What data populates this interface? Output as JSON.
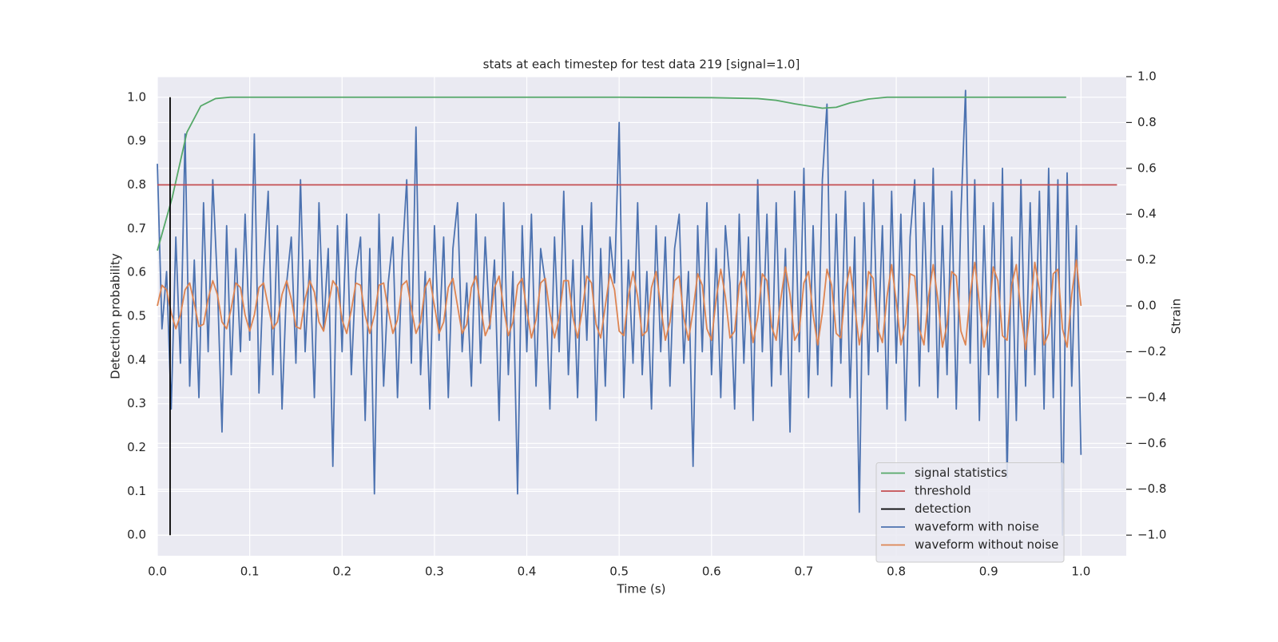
{
  "chart_data": {
    "type": "line",
    "title": "stats at each timestep for test data 219 [signal=1.0]",
    "xlabel": "Time (s)",
    "ylabel": "Detection probability",
    "y2label": "Strain",
    "xlim": [
      0,
      1.049
    ],
    "ylim": [
      -0.047,
      1.047
    ],
    "y2lim": [
      -1.09,
      1.0
    ],
    "xticks": [
      {
        "value": 0,
        "label": "0.0"
      },
      0.1,
      0.2,
      0.3,
      0.4,
      0.5,
      0.6,
      0.7,
      0.8,
      0.9,
      {
        "value": 1,
        "label": "1.0"
      }
    ],
    "yticks": [
      {
        "value": 0,
        "label": "0.0"
      },
      0.1,
      0.2,
      0.3,
      0.4,
      0.5,
      0.6,
      0.7,
      0.8,
      0.9,
      {
        "value": 1,
        "label": "1.0"
      }
    ],
    "y2ticks": [
      {
        "value": -1,
        "label": "−1.0"
      },
      {
        "value": -0.8,
        "label": "−0.8"
      },
      {
        "value": -0.6,
        "label": "−0.6"
      },
      {
        "value": -0.4,
        "label": "−0.4"
      },
      {
        "value": -0.2,
        "label": "−0.2"
      },
      {
        "value": 0,
        "label": "0.0"
      },
      0.2,
      0.4,
      0.6,
      0.8,
      {
        "value": 1,
        "label": "1.0"
      }
    ],
    "grid": true,
    "legend": "lower right",
    "x": [
      0,
      0.005,
      0.01,
      0.015,
      0.02,
      0.025,
      0.03,
      0.035,
      0.04,
      0.045,
      0.05,
      0.055,
      0.06,
      0.065,
      0.07,
      0.075,
      0.08,
      0.085,
      0.09,
      0.095,
      0.1,
      0.105,
      0.11,
      0.115,
      0.12,
      0.125,
      0.13,
      0.135,
      0.14,
      0.145,
      0.15,
      0.155,
      0.16,
      0.165,
      0.17,
      0.175,
      0.18,
      0.185,
      0.19,
      0.195,
      0.2,
      0.205,
      0.21,
      0.215,
      0.22,
      0.225,
      0.23,
      0.235,
      0.24,
      0.245,
      0.25,
      0.255,
      0.26,
      0.265,
      0.27,
      0.275,
      0.28,
      0.285,
      0.29,
      0.295,
      0.3,
      0.305,
      0.31,
      0.315,
      0.32,
      0.325,
      0.33,
      0.335,
      0.34,
      0.345,
      0.35,
      0.355,
      0.36,
      0.365,
      0.37,
      0.375,
      0.38,
      0.385,
      0.39,
      0.395,
      0.4,
      0.405,
      0.41,
      0.415,
      0.42,
      0.425,
      0.43,
      0.435,
      0.44,
      0.445,
      0.45,
      0.455,
      0.46,
      0.465,
      0.47,
      0.475,
      0.48,
      0.485,
      0.49,
      0.495,
      0.5,
      0.505,
      0.51,
      0.515,
      0.52,
      0.525,
      0.53,
      0.535,
      0.54,
      0.545,
      0.55,
      0.555,
      0.56,
      0.565,
      0.57,
      0.575,
      0.58,
      0.585,
      0.59,
      0.595,
      0.6,
      0.605,
      0.61,
      0.615,
      0.62,
      0.625,
      0.63,
      0.635,
      0.64,
      0.645,
      0.65,
      0.655,
      0.66,
      0.665,
      0.67,
      0.675,
      0.68,
      0.685,
      0.69,
      0.695,
      0.7,
      0.705,
      0.71,
      0.715,
      0.72,
      0.725,
      0.73,
      0.735,
      0.74,
      0.745,
      0.75,
      0.755,
      0.76,
      0.765,
      0.77,
      0.775,
      0.78,
      0.785,
      0.79,
      0.795,
      0.8,
      0.805,
      0.81,
      0.815,
      0.82,
      0.825,
      0.83,
      0.835,
      0.84,
      0.845,
      0.85,
      0.855,
      0.86,
      0.865,
      0.87,
      0.875,
      0.88,
      0.885,
      0.89,
      0.895,
      0.9,
      0.905,
      0.91,
      0.915,
      0.92,
      0.925,
      0.93,
      0.935,
      0.94,
      0.945,
      0.95,
      0.955,
      0.96,
      0.965,
      0.97,
      0.975,
      0.98,
      0.985,
      0.99,
      0.995,
      1.0
    ],
    "series": [
      {
        "name": "signal statistics",
        "color": "#55a868",
        "x": [
          0,
          0.016,
          0.032,
          0.047,
          0.063,
          0.079,
          0.1,
          0.2,
          0.3,
          0.4,
          0.5,
          0.6,
          0.65,
          0.67,
          0.69,
          0.72,
          0.735,
          0.75,
          0.77,
          0.79,
          0.85,
          0.9,
          0.95,
          0.984
        ],
        "values": [
          0.65,
          0.77,
          0.92,
          0.98,
          0.997,
          1.0,
          1.0,
          1.0,
          1.0,
          1.0,
          1.0,
          0.999,
          0.997,
          0.993,
          0.985,
          0.975,
          0.977,
          0.987,
          0.996,
          1.0,
          1.0,
          1.0,
          1.0,
          1.0
        ]
      },
      {
        "name": "threshold",
        "color": "#c44e52",
        "x": [
          0,
          1.039
        ],
        "values": [
          0.8,
          0.8
        ]
      },
      {
        "name": "detection",
        "color": "#000000",
        "x": [
          0.0138,
          0.0138
        ],
        "values": [
          0,
          1
        ]
      },
      {
        "name": "waveform with noise",
        "color": "#4c72b0",
        "axis": "y2",
        "values": [
          0.62,
          -0.1,
          0.15,
          -0.45,
          0.3,
          -0.25,
          0.75,
          -0.35,
          0.2,
          -0.4,
          0.45,
          -0.2,
          0.55,
          0.1,
          -0.55,
          0.35,
          -0.3,
          0.25,
          -0.2,
          0.4,
          -0.15,
          0.75,
          -0.38,
          0.15,
          0.5,
          -0.3,
          0.35,
          -0.45,
          0.1,
          0.3,
          -0.25,
          0.55,
          -0.2,
          0.2,
          -0.4,
          0.45,
          -0.1,
          0.25,
          -0.7,
          0.35,
          -0.2,
          0.4,
          -0.3,
          0.15,
          0.3,
          -0.5,
          0.25,
          -0.82,
          0.4,
          -0.35,
          0.1,
          0.3,
          -0.4,
          0.2,
          0.55,
          -0.25,
          0.78,
          -0.3,
          0.15,
          -0.45,
          0.35,
          -0.15,
          0.3,
          -0.4,
          0.25,
          0.45,
          -0.2,
          0.1,
          -0.35,
          0.4,
          -0.25,
          0.3,
          -0.1,
          0.2,
          -0.5,
          0.45,
          -0.3,
          0.15,
          -0.82,
          0.35,
          -0.2,
          0.4,
          -0.35,
          0.25,
          0.1,
          -0.45,
          0.3,
          -0.2,
          0.5,
          -0.3,
          0.2,
          -0.4,
          0.35,
          -0.15,
          0.45,
          -0.5,
          0.25,
          -0.35,
          0.3,
          0.1,
          0.8,
          -0.4,
          0.2,
          -0.25,
          0.45,
          -0.3,
          0.15,
          -0.45,
          0.35,
          -0.2,
          0.3,
          -0.35,
          0.25,
          0.4,
          -0.25,
          0.15,
          -0.7,
          0.35,
          -0.2,
          0.45,
          -0.3,
          0.25,
          -0.4,
          0.35,
          0.1,
          -0.45,
          0.4,
          -0.25,
          0.3,
          -0.5,
          0.55,
          -0.2,
          0.4,
          -0.35,
          0.45,
          -0.3,
          0.25,
          -0.55,
          0.5,
          -0.2,
          0.6,
          -0.4,
          0.35,
          -0.3,
          0.55,
          0.88,
          -0.35,
          0.4,
          -0.25,
          0.5,
          -0.4,
          0.3,
          -0.9,
          0.45,
          -0.3,
          0.55,
          -0.2,
          0.35,
          -0.45,
          0.5,
          -0.25,
          0.4,
          -0.5,
          0.3,
          0.55,
          -0.35,
          0.45,
          -0.2,
          0.6,
          -0.4,
          0.35,
          -0.3,
          0.5,
          -0.45,
          0.4,
          0.94,
          -0.25,
          0.55,
          -0.5,
          0.35,
          -0.3,
          0.45,
          -0.4,
          0.6,
          -0.75,
          0.3,
          -0.5,
          0.55,
          -0.35,
          0.45,
          -0.3,
          0.5,
          -0.45,
          0.6,
          -0.4,
          0.55,
          -1.0,
          0.58,
          -0.35,
          0.35,
          -0.65
        ]
      },
      {
        "name": "waveform without noise",
        "color": "#dd8452",
        "axis": "y2",
        "values": [
          0,
          0.09,
          0.07,
          -0.03,
          -0.1,
          -0.04,
          0.07,
          0.1,
          0.01,
          -0.09,
          -0.08,
          0.03,
          0.11,
          0.05,
          -0.07,
          -0.1,
          -0.01,
          0.1,
          0.08,
          -0.04,
          -0.11,
          -0.04,
          0.08,
          0.1,
          0,
          -0.1,
          -0.07,
          0.05,
          0.11,
          0.03,
          -0.09,
          -0.1,
          0.03,
          0.11,
          0.06,
          -0.07,
          -0.11,
          0,
          0.11,
          0.08,
          -0.06,
          -0.12,
          -0.02,
          0.1,
          0.09,
          -0.04,
          -0.12,
          -0.04,
          0.09,
          0.1,
          -0.02,
          -0.12,
          -0.06,
          0.09,
          0.11,
          -0.01,
          -0.12,
          -0.07,
          0.08,
          0.12,
          0,
          -0.12,
          -0.07,
          0.08,
          0.12,
          0,
          -0.12,
          -0.08,
          0.08,
          0.13,
          0,
          -0.13,
          -0.08,
          0.08,
          0.13,
          -0.01,
          -0.13,
          -0.07,
          0.09,
          0.12,
          -0.02,
          -0.14,
          -0.06,
          0.1,
          0.12,
          -0.03,
          -0.14,
          -0.05,
          0.11,
          0.11,
          -0.05,
          -0.14,
          -0.02,
          0.13,
          0.1,
          -0.08,
          -0.14,
          0,
          0.14,
          0.07,
          -0.11,
          -0.13,
          0.04,
          0.15,
          0.04,
          -0.13,
          -0.11,
          0.08,
          0.15,
          0,
          -0.15,
          -0.07,
          0.11,
          0.13,
          -0.05,
          -0.15,
          -0.02,
          0.14,
          0.09,
          -0.1,
          -0.15,
          0.03,
          0.16,
          0.04,
          -0.14,
          -0.11,
          0.09,
          0.15,
          -0.02,
          -0.16,
          -0.05,
          0.14,
          0.11,
          -0.09,
          -0.15,
          0.03,
          0.17,
          0.05,
          -0.15,
          -0.11,
          0.1,
          0.15,
          -0.04,
          -0.17,
          -0.03,
          0.16,
          0.09,
          -0.12,
          -0.14,
          0.07,
          0.17,
          0,
          -0.17,
          -0.06,
          0.15,
          0.12,
          -0.1,
          -0.16,
          0.04,
          0.18,
          0.02,
          -0.17,
          -0.08,
          0.14,
          0.13,
          -0.1,
          -0.17,
          0.04,
          0.18,
          0.03,
          -0.18,
          -0.08,
          0.15,
          0.13,
          -0.11,
          -0.17,
          0.05,
          0.19,
          0.01,
          -0.18,
          -0.06,
          0.17,
          0.11,
          -0.13,
          -0.15,
          0.09,
          0.18,
          -0.03,
          -0.19,
          -0.02,
          0.19,
          0.07,
          -0.17,
          -0.12,
          0.14,
          0.16,
          -0.1,
          -0.18,
          0.05,
          0.2,
          0
        ]
      }
    ]
  }
}
